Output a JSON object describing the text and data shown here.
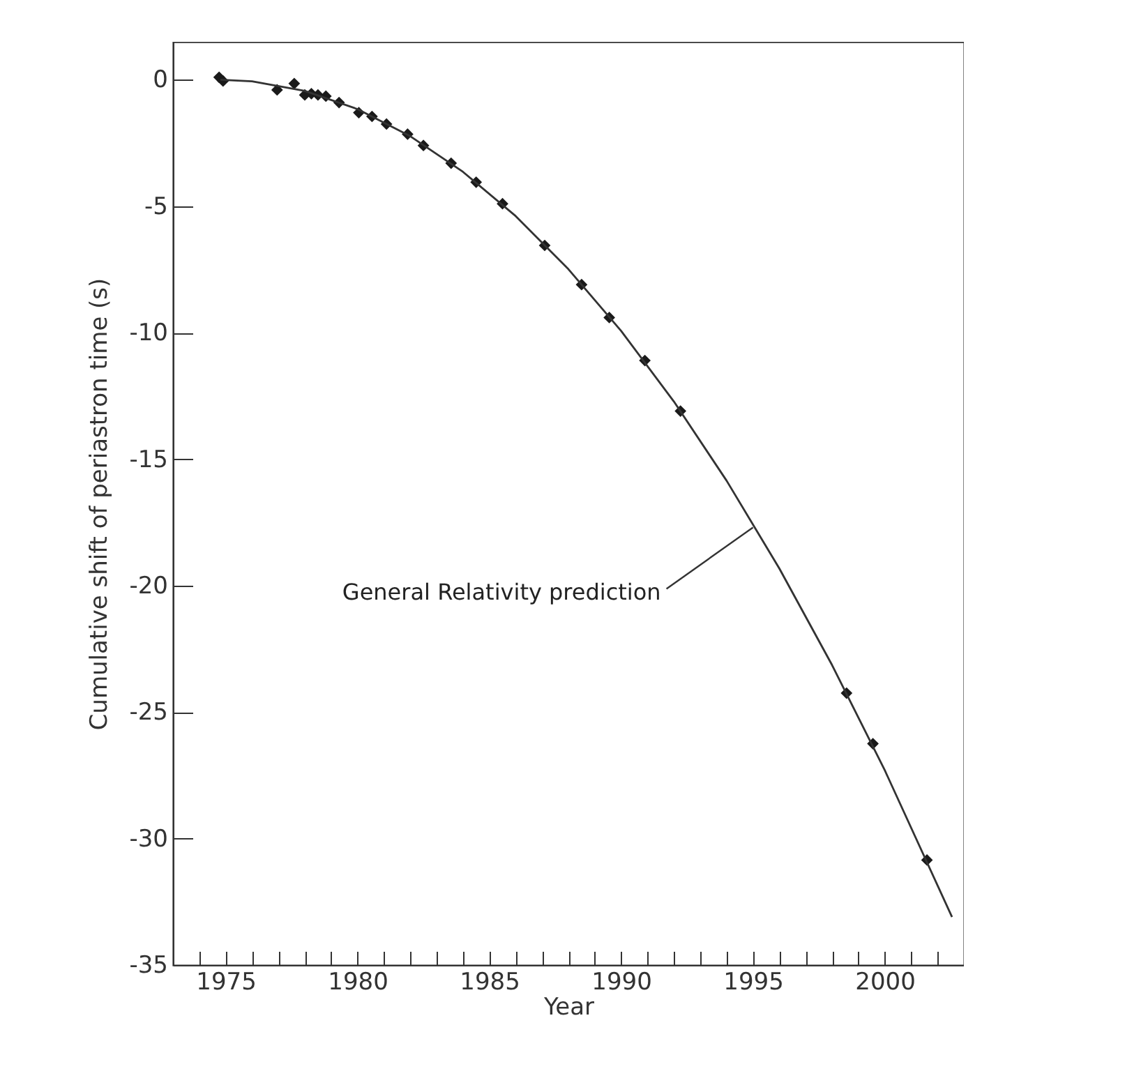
{
  "chart_data": {
    "type": "scatter",
    "xlabel": "Year",
    "ylabel": "Cumulative shift of periastron time (s)",
    "xlim": [
      1973,
      2003
    ],
    "ylim": [
      -35,
      1.5
    ],
    "xticks": [
      {
        "value": 1974,
        "label": null
      },
      1975,
      {
        "value": 1976,
        "label": null
      },
      {
        "value": 1977,
        "label": null
      },
      {
        "value": 1978,
        "label": null
      },
      {
        "value": 1979,
        "label": null
      },
      1980,
      {
        "value": 1981,
        "label": null
      },
      {
        "value": 1982,
        "label": null
      },
      {
        "value": 1983,
        "label": null
      },
      {
        "value": 1984,
        "label": null
      },
      1985,
      {
        "value": 1986,
        "label": null
      },
      {
        "value": 1987,
        "label": null
      },
      {
        "value": 1988,
        "label": null
      },
      {
        "value": 1989,
        "label": null
      },
      1990,
      {
        "value": 1991,
        "label": null
      },
      {
        "value": 1992,
        "label": null
      },
      {
        "value": 1993,
        "label": null
      },
      {
        "value": 1994,
        "label": null
      },
      1995,
      {
        "value": 1996,
        "label": null
      },
      {
        "value": 1997,
        "label": null
      },
      {
        "value": 1998,
        "label": null
      },
      {
        "value": 1999,
        "label": null
      },
      2000,
      {
        "value": 2001,
        "label": null
      },
      {
        "value": 2002,
        "label": null
      }
    ],
    "yticks": [
      -35,
      -30,
      -25,
      -20,
      -15,
      -10,
      -5,
      0
    ],
    "grid": false,
    "series": [
      {
        "color": "#1a1a1a",
        "marker": "diamond",
        "x": [
          1974.75,
          1974.9,
          1976.95,
          1977.6,
          1978.0,
          1978.25,
          1978.5,
          1978.8,
          1979.3,
          1980.05,
          1980.55,
          1981.1,
          1981.9,
          1982.5,
          1983.55,
          1984.5,
          1985.5,
          1987.1,
          1988.5,
          1989.55,
          1990.9,
          1992.25,
          1998.55,
          1999.55,
          2001.6
        ],
        "values": [
          0.1,
          -0.05,
          -0.4,
          -0.15,
          -0.6,
          -0.55,
          -0.6,
          -0.65,
          -0.9,
          -1.3,
          -1.45,
          -1.75,
          -2.15,
          -2.6,
          -3.3,
          -4.05,
          -4.9,
          -6.55,
          -8.1,
          -9.4,
          -11.1,
          -13.1,
          -24.25,
          -26.25,
          -30.85
        ]
      },
      {
        "type": "line",
        "color": "#333333",
        "marker": "none",
        "x": [
          1974.8,
          1976,
          1978,
          1980,
          1982,
          1984,
          1986,
          1988,
          1990,
          1992,
          1994,
          1996,
          1998,
          2000,
          2002.55
        ],
        "values": [
          0,
          -0.06,
          -0.44,
          -1.16,
          -2.23,
          -3.64,
          -5.39,
          -7.49,
          -9.93,
          -12.72,
          -15.85,
          -19.32,
          -23.14,
          -27.3,
          -33.1
        ]
      }
    ],
    "annotations": [
      {
        "text": "General Relativity prediction",
        "x": 1995,
        "y": -17.7
      }
    ]
  }
}
